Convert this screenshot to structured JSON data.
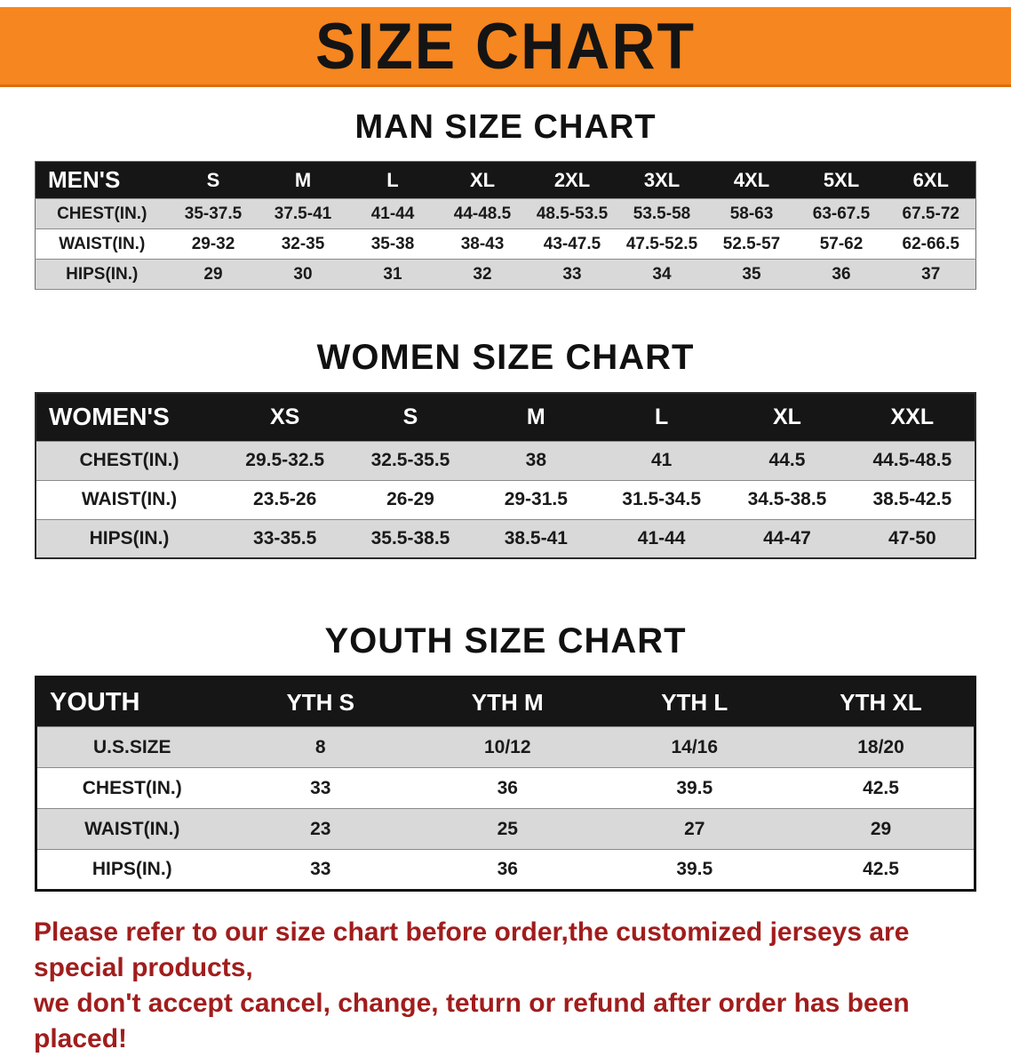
{
  "colors": {
    "banner_orange": "#f6861f",
    "table_header_black": "#161616",
    "row_gray": "#d9d9d9",
    "notice_red": "#a11d1d"
  },
  "banner": {
    "title": "SIZE CHART"
  },
  "sections": [
    {
      "heading": "MAN SIZE CHART",
      "table": {
        "header": [
          "MEN'S",
          "S",
          "M",
          "L",
          "XL",
          "2XL",
          "3XL",
          "4XL",
          "5XL",
          "6XL"
        ],
        "rows": [
          [
            "CHEST(IN.)",
            "35-37.5",
            "37.5-41",
            "41-44",
            "44-48.5",
            "48.5-53.5",
            "53.5-58",
            "58-63",
            "63-67.5",
            "67.5-72"
          ],
          [
            "WAIST(IN.)",
            "29-32",
            "32-35",
            "35-38",
            "38-43",
            "43-47.5",
            "47.5-52.5",
            "52.5-57",
            "57-62",
            "62-66.5"
          ],
          [
            "HIPS(IN.)",
            "29",
            "30",
            "31",
            "32",
            "33",
            "34",
            "35",
            "36",
            "37"
          ]
        ]
      }
    },
    {
      "heading": "WOMEN SIZE CHART",
      "table": {
        "header": [
          "WOMEN'S",
          "XS",
          "S",
          "M",
          "L",
          "XL",
          "XXL"
        ],
        "rows": [
          [
            "CHEST(IN.)",
            "29.5-32.5",
            "32.5-35.5",
            "38",
            "41",
            "44.5",
            "44.5-48.5"
          ],
          [
            "WAIST(IN.)",
            "23.5-26",
            "26-29",
            "29-31.5",
            "31.5-34.5",
            "34.5-38.5",
            "38.5-42.5"
          ],
          [
            "HIPS(IN.)",
            "33-35.5",
            "35.5-38.5",
            "38.5-41",
            "41-44",
            "44-47",
            "47-50"
          ]
        ]
      }
    },
    {
      "heading": "YOUTH SIZE CHART",
      "table": {
        "header": [
          "YOUTH",
          "YTH S",
          "YTH M",
          "YTH L",
          "YTH XL"
        ],
        "rows": [
          [
            "U.S.SIZE",
            "8",
            "10/12",
            "14/16",
            "18/20"
          ],
          [
            "CHEST(IN.)",
            "33",
            "36",
            "39.5",
            "42.5"
          ],
          [
            "WAIST(IN.)",
            "23",
            "25",
            "27",
            "29"
          ],
          [
            "HIPS(IN.)",
            "33",
            "36",
            "39.5",
            "42.5"
          ]
        ]
      }
    }
  ],
  "notice": {
    "line1": "Please refer to our size chart before order,the customized jerseys are special products,",
    "line2": "we don't accept cancel, change, teturn or refund after order has been placed!"
  }
}
